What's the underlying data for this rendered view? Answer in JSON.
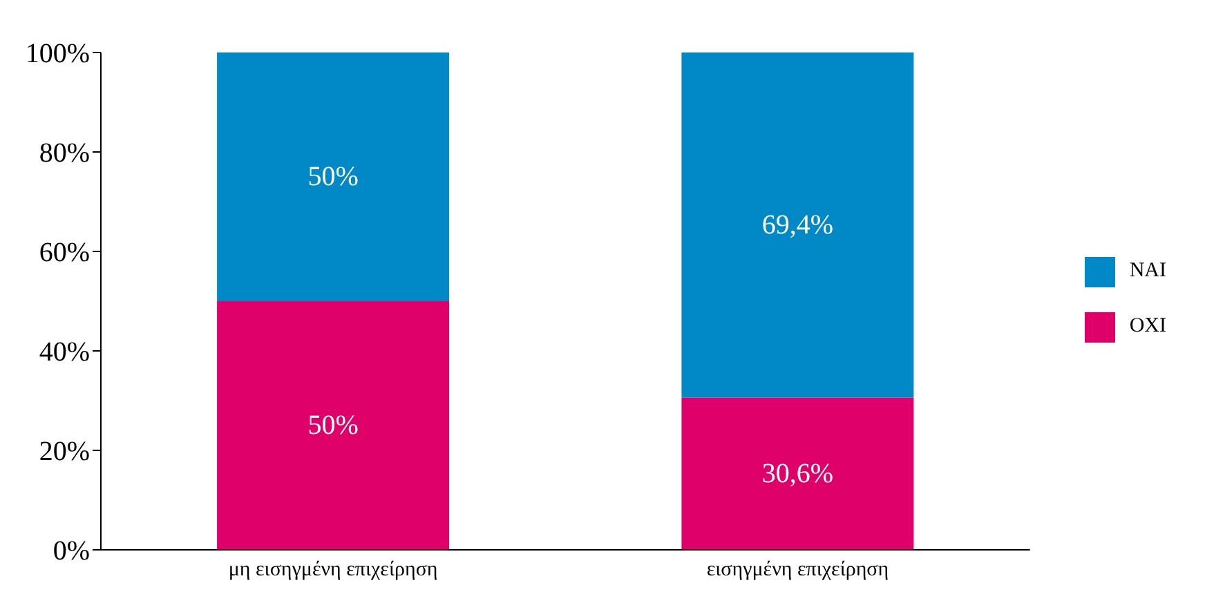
{
  "chart_data": {
    "type": "bar",
    "stacked": true,
    "categories": [
      "μη εισηγμένη επιχείρηση",
      "εισηγμένη επιχείρηση"
    ],
    "series": [
      {
        "name": "ΟΧΙ",
        "color": "#e0006a",
        "values": [
          50,
          30.6
        ],
        "value_labels": [
          "50%",
          "30,6%"
        ]
      },
      {
        "name": "ΝΑΙ",
        "color": "#0089c6",
        "values": [
          50,
          69.4
        ],
        "value_labels": [
          "50%",
          "69,4%"
        ]
      }
    ],
    "ylim": [
      0,
      100
    ],
    "yticks": [
      {
        "value": 0,
        "label": "0%"
      },
      {
        "value": 20,
        "label": "20%"
      },
      {
        "value": 40,
        "label": "40%"
      },
      {
        "value": 60,
        "label": "60%"
      },
      {
        "value": 80,
        "label": "80%"
      },
      {
        "value": 100,
        "label": "100%"
      }
    ],
    "grid": false,
    "legend": "right"
  }
}
